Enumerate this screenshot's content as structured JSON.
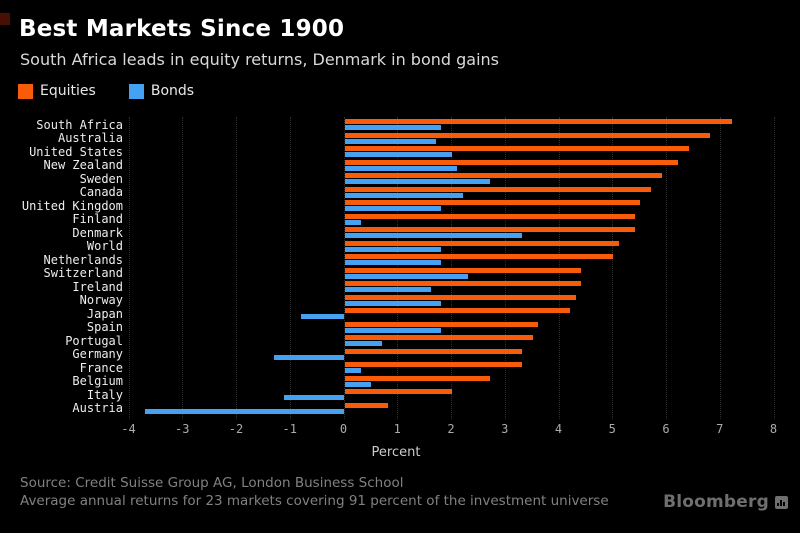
{
  "header": {
    "title": "Best Markets Since 1900",
    "subtitle": "South Africa leads in equity returns, Denmark in bond gains"
  },
  "legend": {
    "items": [
      {
        "label": "Equities",
        "color": "#f85c0a"
      },
      {
        "label": "Bonds",
        "color": "#45a1f2"
      }
    ]
  },
  "chart_data": {
    "type": "bar",
    "orientation": "horizontal",
    "title": "Best Markets Since 1900",
    "subtitle": "South Africa leads in equity returns, Denmark in bond gains",
    "xlabel": "Percent",
    "xlim": [
      -4,
      8
    ],
    "xticks": [
      -4,
      -3,
      -2,
      -1,
      0,
      1,
      2,
      3,
      4,
      5,
      6,
      7,
      8
    ],
    "grid": "vertical-dotted",
    "legend_position": "top-left",
    "categories": [
      "South Africa",
      "Australia",
      "United States",
      "New Zealand",
      "Sweden",
      "Canada",
      "United Kingdom",
      "Finland",
      "Denmark",
      "World",
      "Netherlands",
      "Switzerland",
      "Ireland",
      "Norway",
      "Japan",
      "Spain",
      "Portugal",
      "Germany",
      "France",
      "Belgium",
      "Italy",
      "Austria"
    ],
    "series": [
      {
        "name": "Equities",
        "color": "#f85c0a",
        "values": [
          7.2,
          6.8,
          6.4,
          6.2,
          5.9,
          5.7,
          5.5,
          5.4,
          5.4,
          5.1,
          5.0,
          4.4,
          4.4,
          4.3,
          4.2,
          3.6,
          3.5,
          3.3,
          3.3,
          2.7,
          2.0,
          0.8
        ]
      },
      {
        "name": "Bonds",
        "color": "#45a1f2",
        "values": [
          1.8,
          1.7,
          2.0,
          2.1,
          2.7,
          2.2,
          1.8,
          0.3,
          3.3,
          1.8,
          1.8,
          2.3,
          1.6,
          1.8,
          -0.8,
          1.8,
          0.7,
          -1.3,
          0.3,
          0.5,
          -1.1,
          -3.7
        ]
      }
    ]
  },
  "footer": {
    "source": "Source: Credit Suisse Group AG, London Business School",
    "note": "Average annual returns for 23 markets covering 91 percent of the investment universe",
    "brand": "Bloomberg"
  },
  "colors": {
    "background": "#000000",
    "title": "#ffffff",
    "subtitle": "#d9d9d9",
    "category_labels": "#ededed",
    "tick_labels": "#ababab",
    "gridline": "#2e2e2e",
    "footer_text": "#818181",
    "brand": "#6f6f6f"
  }
}
